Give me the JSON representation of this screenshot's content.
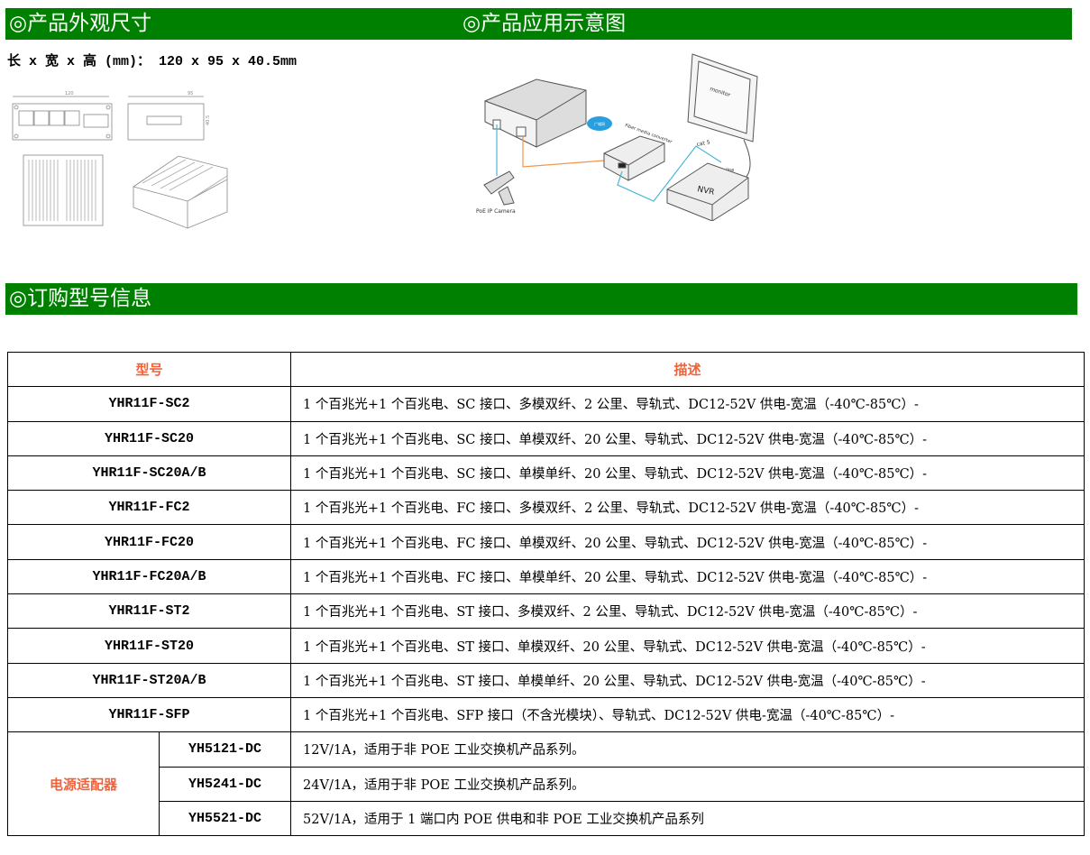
{
  "sections": {
    "dimensions_title": "◎产品外观尺寸",
    "application_title": "◎产品应用示意图",
    "ordering_title": "◎订购型号信息"
  },
  "dimensions_text": "长 x 宽 x 高 (mm)： 120 x 95 x 40.5mm",
  "drawing_labels": {
    "front_width": "120",
    "side_width": "95",
    "height": "40.5"
  },
  "diagram_labels": {
    "camera": "PoE IP Camera",
    "converter": "Fiber media converter",
    "cloud": "广域网",
    "monitor": "monitor",
    "cable": "cat 5",
    "video": "video line",
    "nvr": "NVR"
  },
  "colors": {
    "header_bg": "#008000",
    "accent_text": "#f0633a"
  },
  "table": {
    "headers": {
      "model": "型号",
      "description": "描述"
    },
    "rows": [
      {
        "model": "YHR11F-SC2",
        "desc": "1 个百兆光+1 个百兆电、SC 接口、多模双纤、2 公里、导轨式、DC12-52V 供电-宽温（-40℃-85℃）-"
      },
      {
        "model": "YHR11F-SC20",
        "desc": "1 个百兆光+1 个百兆电、SC 接口、单模双纤、20 公里、导轨式、DC12-52V 供电-宽温（-40℃-85℃）-"
      },
      {
        "model": "YHR11F-SC20A/B",
        "desc": "1 个百兆光+1 个百兆电、SC 接口、单模单纤、20 公里、导轨式、DC12-52V 供电-宽温（-40℃-85℃）-"
      },
      {
        "model": "YHR11F-FC2",
        "desc": "1 个百兆光+1 个百兆电、FC 接口、多模双纤、2 公里、导轨式、DC12-52V 供电-宽温（-40℃-85℃）-"
      },
      {
        "model": "YHR11F-FC20",
        "desc": "1 个百兆光+1 个百兆电、FC 接口、单模双纤、20 公里、导轨式、DC12-52V 供电-宽温（-40℃-85℃）-"
      },
      {
        "model": "YHR11F-FC20A/B",
        "desc": "1 个百兆光+1 个百兆电、FC 接口、单模单纤、20 公里、导轨式、DC12-52V 供电-宽温（-40℃-85℃）-"
      },
      {
        "model": "YHR11F-ST2",
        "desc": "1 个百兆光+1 个百兆电、ST 接口、多模双纤、2 公里、导轨式、DC12-52V 供电-宽温（-40℃-85℃）-"
      },
      {
        "model": "YHR11F-ST20",
        "desc": "1 个百兆光+1 个百兆电、ST 接口、单模双纤、20 公里、导轨式、DC12-52V 供电-宽温（-40℃-85℃）-"
      },
      {
        "model": "YHR11F-ST20A/B",
        "desc": "1 个百兆光+1 个百兆电、ST 接口、单模单纤、20 公里、导轨式、DC12-52V 供电-宽温（-40℃-85℃）-"
      },
      {
        "model": "YHR11F-SFP",
        "desc": "1 个百兆光+1 个百兆电、SFP 接口（不含光模块）、导轨式、DC12-52V 供电-宽温（-40℃-85℃）-"
      }
    ],
    "power_group_label": "电源适配器",
    "power_rows": [
      {
        "model": "YH5121-DC",
        "desc": "12V/1A，适用于非 POE 工业交换机产品系列。"
      },
      {
        "model": "YH5241-DC",
        "desc": "24V/1A，适用于非 POE 工业交换机产品系列。"
      },
      {
        "model": "YH5521-DC",
        "desc": "52V/1A，适用于 1 端口内 POE 供电和非 POE 工业交换机产品系列"
      }
    ]
  }
}
